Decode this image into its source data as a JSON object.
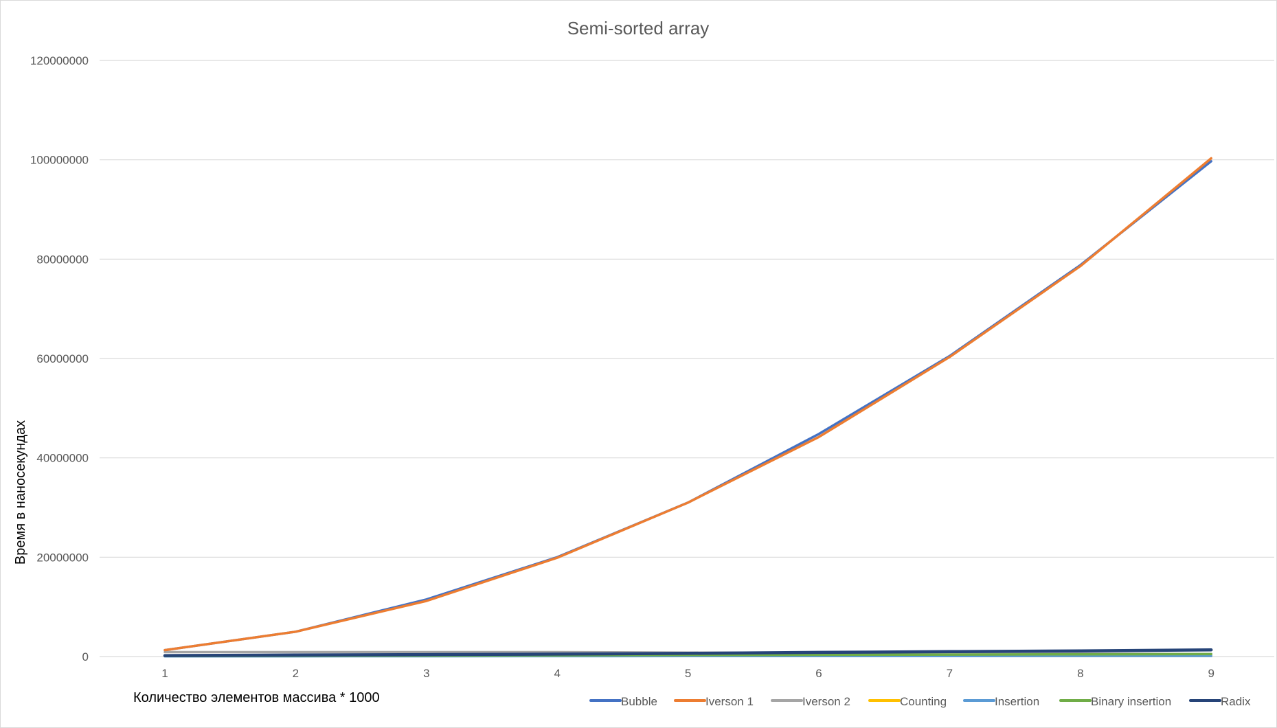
{
  "chart_data": {
    "type": "line",
    "title": "Semi-sorted array",
    "xlabel": "Количество элементов массива * 1000",
    "ylabel": "Время в наносекундах",
    "x": [
      1,
      2,
      3,
      4,
      5,
      6,
      7,
      8,
      9
    ],
    "x_tick_labels": [
      "1",
      "2",
      "3",
      "4",
      "5",
      "6",
      "7",
      "8",
      "9"
    ],
    "ylim": [
      0,
      120000000
    ],
    "y_ticks": [
      0,
      20000000,
      40000000,
      60000000,
      80000000,
      100000000,
      120000000
    ],
    "y_tick_labels": [
      "0",
      "20000000",
      "40000000",
      "60000000",
      "80000000",
      "100000000",
      "120000000"
    ],
    "grid": true,
    "legend_position": "bottom-right",
    "series": [
      {
        "name": "Bubble",
        "color": "#4472C4",
        "values": [
          1300000,
          5000000,
          11500000,
          20000000,
          31000000,
          44800000,
          60500000,
          78800000,
          99700000
        ]
      },
      {
        "name": "Iverson 1",
        "color": "#ED7D31",
        "values": [
          1300000,
          5000000,
          11200000,
          19900000,
          31000000,
          44200000,
          60300000,
          78600000,
          100300000
        ]
      },
      {
        "name": "Iverson 2",
        "color": "#A5A5A5",
        "values": [
          900000,
          900000,
          900000,
          900000,
          800000,
          800000,
          700000,
          600000,
          500000
        ]
      },
      {
        "name": "Counting",
        "color": "#FFC000",
        "values": [
          100000,
          100000,
          100000,
          100000,
          100000,
          100000,
          100000,
          100000,
          100000
        ]
      },
      {
        "name": "Insertion",
        "color": "#5B9BD5",
        "values": [
          50000,
          60000,
          70000,
          80000,
          90000,
          100000,
          110000,
          120000,
          130000
        ]
      },
      {
        "name": "Binary insertion",
        "color": "#70AD47",
        "values": [
          100000,
          150000,
          200000,
          250000,
          300000,
          350000,
          400000,
          450000,
          500000
        ]
      },
      {
        "name": "Radix",
        "color": "#264478",
        "values": [
          200000,
          300000,
          400000,
          500000,
          650000,
          850000,
          1000000,
          1150000,
          1350000
        ]
      }
    ]
  }
}
